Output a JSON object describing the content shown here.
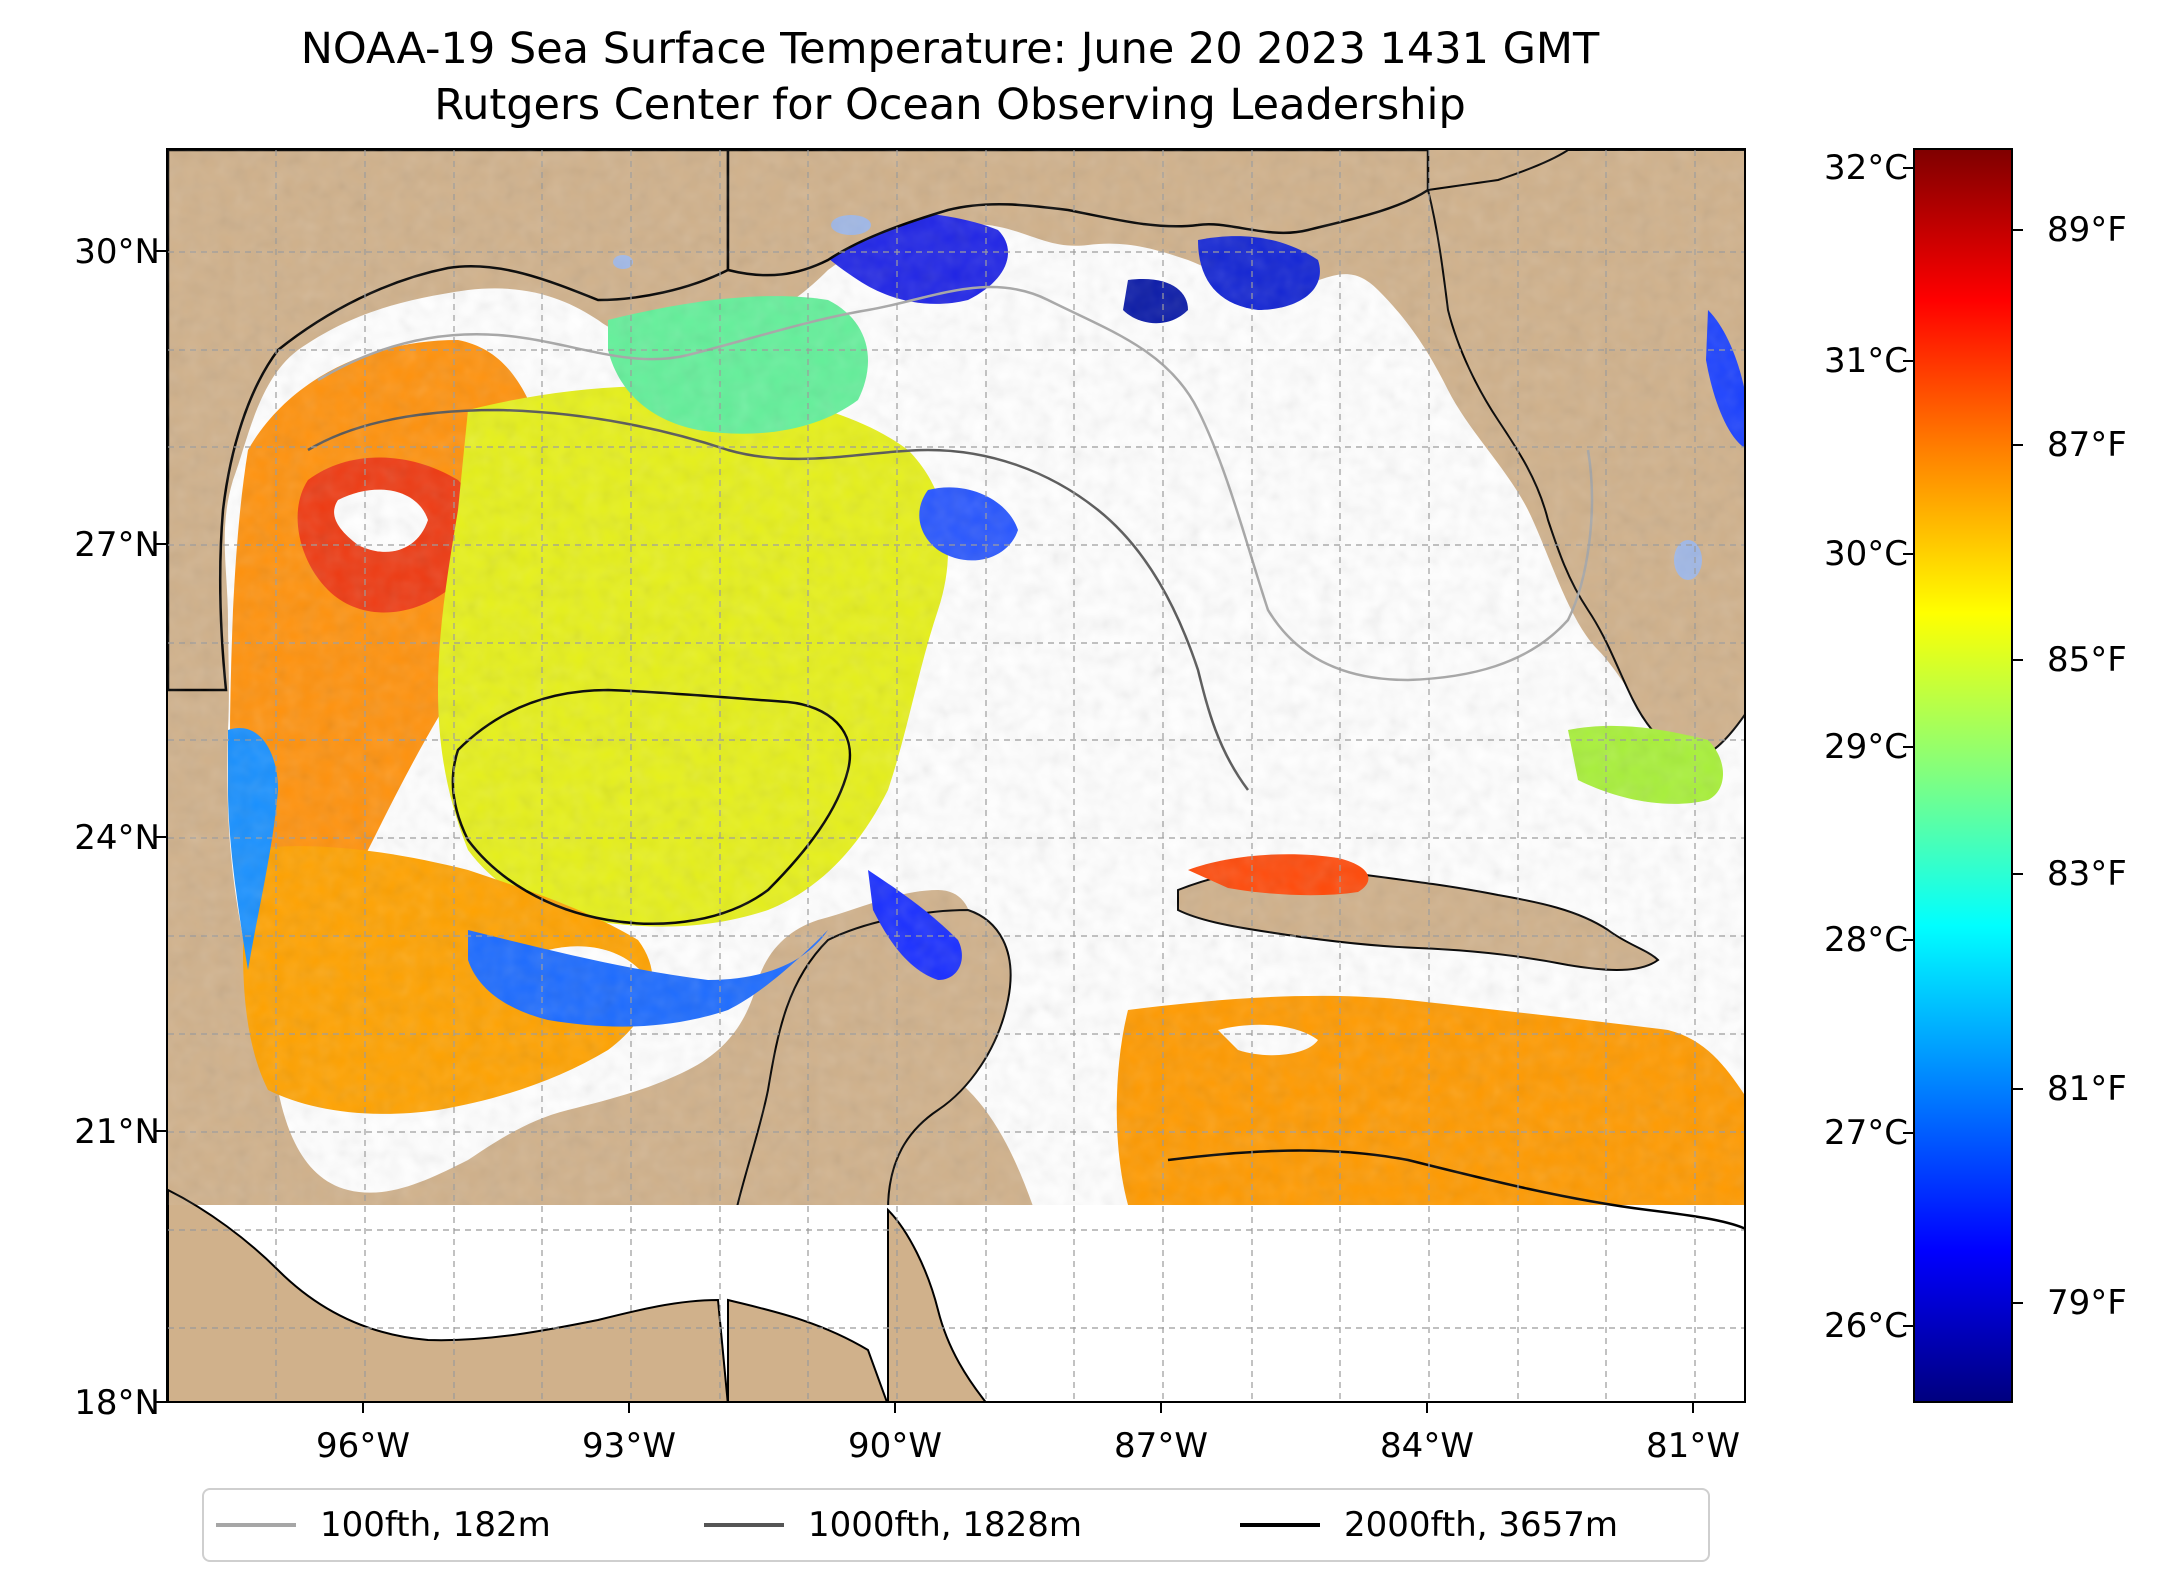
{
  "title": {
    "line1": "NOAA-19 Sea Surface Temperature: June 20 2023 1431 GMT",
    "line2": "Rutgers Center for Ocean Observing Leadership"
  },
  "map": {
    "lat_range": [
      18,
      30.7
    ],
    "lon_range": [
      -98.2,
      -80.4
    ],
    "lat_ticks": [
      "30°N",
      "27°N",
      "24°N",
      "21°N",
      "18°N"
    ],
    "lon_ticks": [
      "96°W",
      "93°W",
      "90°W",
      "87°W",
      "84°W",
      "81°W"
    ],
    "gridlines": true,
    "colors": {
      "land": "#d0b18b",
      "no_data": "#ffffff",
      "inland_water": "#9fb7e6",
      "coastline": "#000000",
      "grid": "#9a9a9a"
    }
  },
  "colorbar": {
    "colormap": "jet",
    "celsius_labels": [
      "32°C",
      "31°C",
      "30°C",
      "29°C",
      "28°C",
      "27°C",
      "26°C"
    ],
    "celsius_values": [
      32,
      31,
      30,
      29,
      28,
      27,
      26
    ],
    "fahrenheit_labels": [
      "89°F",
      "87°F",
      "85°F",
      "83°F",
      "81°F",
      "79°F"
    ],
    "fahrenheit_values": [
      89,
      87,
      85,
      83,
      81,
      79
    ],
    "range_c": [
      25.7,
      32.1
    ]
  },
  "legend": {
    "position": "bottom-center",
    "items": [
      {
        "label": "100fth, 182m",
        "color": "#a6a6a6"
      },
      {
        "label": "1000fth, 1828m",
        "color": "#555555"
      },
      {
        "label": "2000fth, 3657m",
        "color": "#000000"
      }
    ]
  }
}
